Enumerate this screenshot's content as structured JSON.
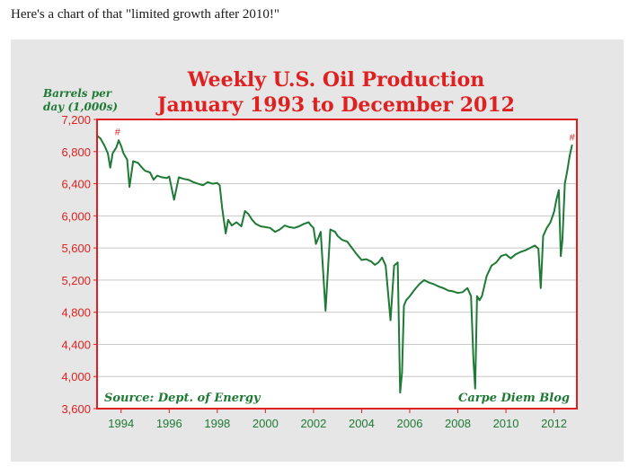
{
  "intro_text": "Here's a chart of that \"limited growth after 2010!\"",
  "chart_data": {
    "type": "line",
    "title": "Weekly U.S. Oil Production",
    "subtitle": "January 1993 to December 2012",
    "ylabel_line1": "Barrels per",
    "ylabel_line2": "day (1,000s)",
    "xlabel": "",
    "ylim": [
      3600,
      7200
    ],
    "xlim": [
      1993.0,
      2012.95
    ],
    "yticks": [
      3600,
      4000,
      4400,
      4800,
      5200,
      5600,
      6000,
      6400,
      6800,
      7200
    ],
    "ytick_labels": [
      "3,600",
      "4,000",
      "4,400",
      "4,800",
      "5,200",
      "5,600",
      "6,000",
      "6,400",
      "6,800",
      "7,200"
    ],
    "xticks": [
      1994,
      1996,
      1998,
      2000,
      2002,
      2004,
      2006,
      2008,
      2010,
      2012
    ],
    "xtick_labels": [
      "1994",
      "1996",
      "1998",
      "2000",
      "2002",
      "2004",
      "2006",
      "2008",
      "2010",
      "2012"
    ],
    "grid": true,
    "source_note": "Source: Dept. of Energy",
    "blog_note": "Carpe Diem Blog",
    "marker_symbol": "#",
    "markers": [
      {
        "x": 1993.85,
        "y": 6960
      },
      {
        "x": 2012.75,
        "y": 6890
      }
    ],
    "series": [
      {
        "color": "#1e7a35",
        "x": [
          1993.0,
          1993.15,
          1993.3,
          1993.45,
          1993.55,
          1993.65,
          1993.8,
          1993.9,
          1994.0,
          1994.1,
          1994.25,
          1994.35,
          1994.5,
          1994.7,
          1994.9,
          1995.0,
          1995.2,
          1995.35,
          1995.5,
          1995.7,
          1995.9,
          1996.0,
          1996.2,
          1996.4,
          1996.6,
          1996.8,
          1997.0,
          1997.2,
          1997.4,
          1997.6,
          1997.8,
          1998.0,
          1998.1,
          1998.2,
          1998.35,
          1998.45,
          1998.6,
          1998.8,
          1999.0,
          1999.15,
          1999.3,
          1999.45,
          1999.6,
          1999.8,
          2000.0,
          2000.2,
          2000.4,
          2000.6,
          2000.8,
          2001.0,
          2001.2,
          2001.4,
          2001.6,
          2001.8,
          2001.9,
          2002.0,
          2002.1,
          2002.3,
          2002.5,
          2002.7,
          2002.9,
          2003.0,
          2003.2,
          2003.4,
          2003.6,
          2003.8,
          2004.0,
          2004.2,
          2004.4,
          2004.55,
          2004.7,
          2004.85,
          2005.0,
          2005.2,
          2005.35,
          2005.5,
          2005.6,
          2005.68,
          2005.76,
          2005.85,
          2006.0,
          2006.2,
          2006.4,
          2006.6,
          2006.8,
          2007.0,
          2007.2,
          2007.4,
          2007.6,
          2007.8,
          2008.0,
          2008.2,
          2008.4,
          2008.55,
          2008.65,
          2008.72,
          2008.8,
          2008.9,
          2009.0,
          2009.2,
          2009.4,
          2009.6,
          2009.8,
          2010.0,
          2010.2,
          2010.4,
          2010.6,
          2010.8,
          2011.0,
          2011.2,
          2011.35,
          2011.45,
          2011.55,
          2011.7,
          2011.85,
          2012.0,
          2012.1,
          2012.2,
          2012.28,
          2012.35,
          2012.45,
          2012.55,
          2012.65,
          2012.75
        ],
        "y": [
          7000,
          6960,
          6880,
          6780,
          6600,
          6780,
          6850,
          6940,
          6870,
          6780,
          6700,
          6360,
          6680,
          6660,
          6590,
          6560,
          6540,
          6450,
          6500,
          6480,
          6470,
          6490,
          6200,
          6480,
          6460,
          6450,
          6420,
          6400,
          6380,
          6420,
          6400,
          6410,
          6380,
          6100,
          5780,
          5950,
          5880,
          5920,
          5870,
          6060,
          6020,
          5950,
          5900,
          5870,
          5860,
          5850,
          5800,
          5830,
          5880,
          5860,
          5850,
          5870,
          5900,
          5920,
          5880,
          5850,
          5650,
          5800,
          4820,
          5830,
          5800,
          5750,
          5700,
          5680,
          5600,
          5520,
          5450,
          5460,
          5430,
          5390,
          5420,
          5480,
          5380,
          4700,
          5380,
          5420,
          3800,
          4050,
          4880,
          4950,
          5000,
          5080,
          5150,
          5200,
          5170,
          5150,
          5120,
          5100,
          5070,
          5060,
          5040,
          5050,
          5100,
          5000,
          4200,
          3850,
          5000,
          4950,
          5000,
          5250,
          5380,
          5420,
          5500,
          5520,
          5470,
          5520,
          5550,
          5570,
          5600,
          5630,
          5590,
          5100,
          5750,
          5850,
          5920,
          6050,
          6200,
          6320,
          5500,
          5700,
          6400,
          6560,
          6750,
          6880
        ]
      }
    ]
  }
}
